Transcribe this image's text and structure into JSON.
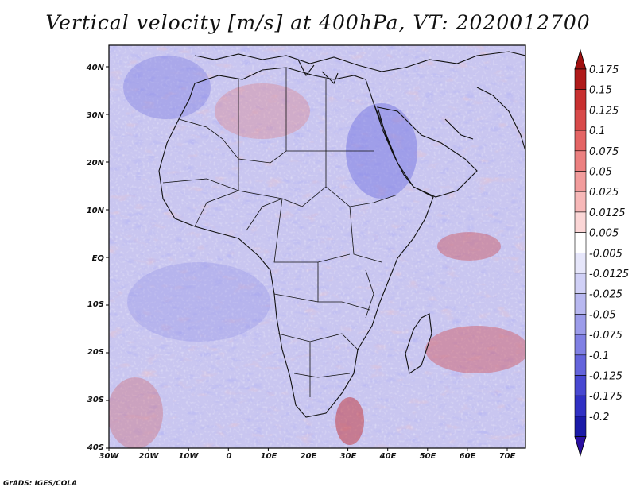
{
  "title": "Vertical velocity [m/s] at 400hPa, VT: 2020012700",
  "credit": "GrADS: IGES/COLA",
  "lat_labels": [
    "40N",
    "30N",
    "20N",
    "10N",
    "EQ",
    "10S",
    "20S",
    "30S",
    "40S"
  ],
  "lon_labels": [
    "30W",
    "20W",
    "10W",
    "0",
    "10E",
    "20E",
    "30E",
    "40E",
    "50E",
    "60E",
    "70E"
  ],
  "colorbar": {
    "labels": [
      "0.175",
      "0.15",
      "0.125",
      "0.1",
      "0.075",
      "0.05",
      "0.025",
      "0.0125",
      "0.005",
      "-0.005",
      "-0.0125",
      "-0.025",
      "-0.05",
      "-0.075",
      "-0.1",
      "-0.125",
      "-0.175",
      "-0.2"
    ],
    "colors": [
      "#b01a1a",
      "#c83030",
      "#d84a4a",
      "#e46464",
      "#ec8080",
      "#f29c9c",
      "#f7b8b8",
      "#fbd6d6",
      "#ffffff",
      "#e6e6fa",
      "#d0d0f6",
      "#b8b8f0",
      "#9c9cea",
      "#8080e4",
      "#6464dc",
      "#4848d2",
      "#3030c4",
      "#1a1aa8"
    ],
    "cap_top": "#a01010",
    "cap_bottom": "#2a10a0"
  }
}
